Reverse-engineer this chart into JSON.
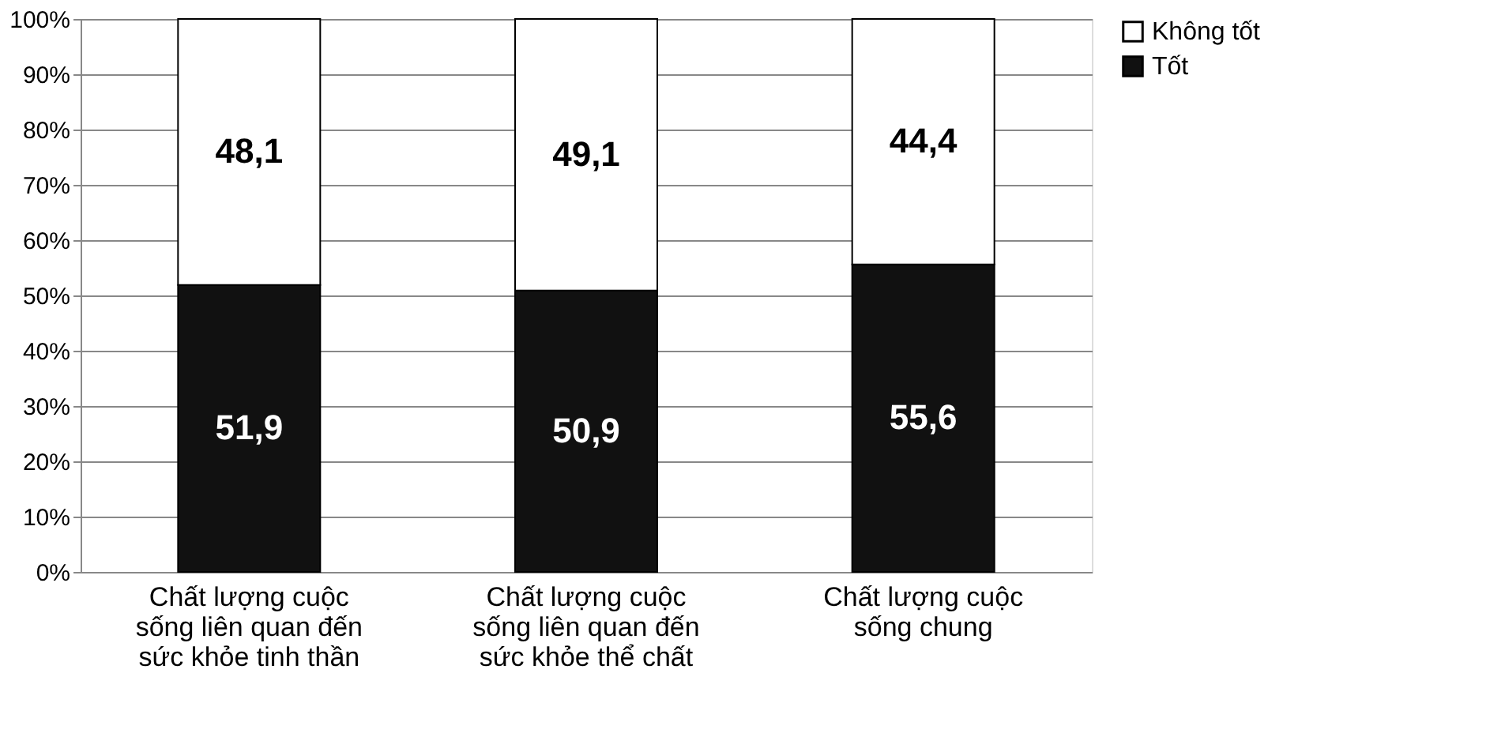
{
  "chart_data": {
    "type": "bar",
    "stacked": true,
    "categories": [
      "Chất lượng cuộc sống liên quan đến sức khỏe tinh thần",
      "Chất lượng cuộc sống liên quan đến sức khỏe thể chất",
      "Chất lượng cuộc sống chung"
    ],
    "series": [
      {
        "name": "Tốt",
        "color": "#111111",
        "values": [
          51.9,
          50.9,
          55.6
        ],
        "value_labels": [
          "51,9",
          "50,9",
          "55,6"
        ]
      },
      {
        "name": "Không tốt",
        "color": "#ffffff",
        "values": [
          48.1,
          49.1,
          44.4
        ],
        "value_labels": [
          "48,1",
          "49,1",
          "44,4"
        ]
      }
    ],
    "ylim": [
      0,
      100
    ],
    "yticks": [
      {
        "value": 0,
        "label": "0%"
      },
      {
        "value": 10,
        "label": "10%"
      },
      {
        "value": 20,
        "label": "20%"
      },
      {
        "value": 30,
        "label": "30%"
      },
      {
        "value": 40,
        "label": "40%"
      },
      {
        "value": 50,
        "label": "50%"
      },
      {
        "value": 60,
        "label": "60%"
      },
      {
        "value": 70,
        "label": "70%"
      },
      {
        "value": 80,
        "label": "80%"
      },
      {
        "value": 90,
        "label": "90%"
      },
      {
        "value": 100,
        "label": "100%"
      }
    ],
    "grid": "y",
    "legend": "right"
  }
}
